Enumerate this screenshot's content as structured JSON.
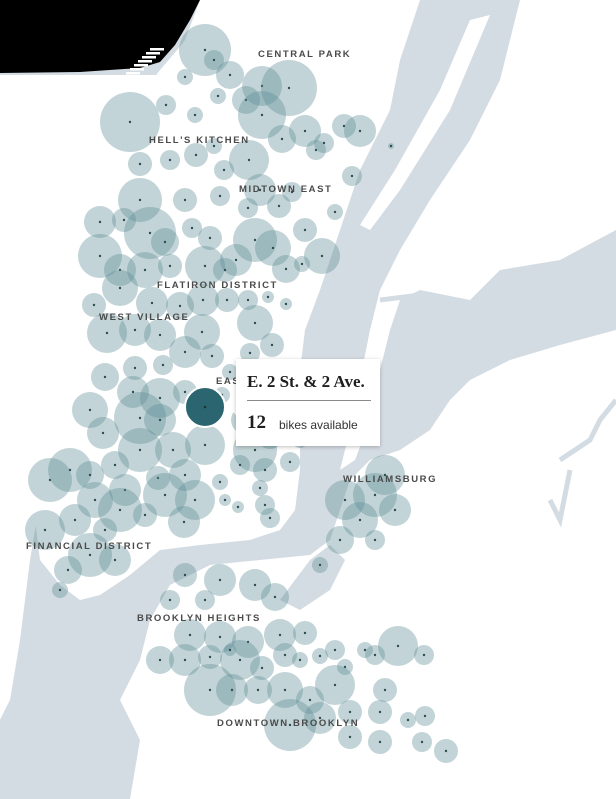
{
  "colors": {
    "water": "#d4dce3",
    "land": "#ffffff",
    "station_fill": "#5e8f97",
    "station_dot": "#2e4d52",
    "selected_fill": "#2b6670"
  },
  "neighborhoods": [
    {
      "name": "CENTRAL PARK"
    },
    {
      "name": "HELL'S KITCHEN"
    },
    {
      "name": "MIDTOWN EAST"
    },
    {
      "name": "FLATIRON DISTRICT"
    },
    {
      "name": "WEST VILLAGE"
    },
    {
      "name": "EAST"
    },
    {
      "name": "WILLIAMSBURG"
    },
    {
      "name": "FINANCIAL DISTRICT"
    },
    {
      "name": "BROOKLYN HEIGHTS"
    },
    {
      "name": "DOWNTOWN BROOKLYN"
    }
  ],
  "tooltip": {
    "station_name": "E. 2 St. & 2 Ave.",
    "bikes_available": "12",
    "unit_label": "bikes available"
  }
}
